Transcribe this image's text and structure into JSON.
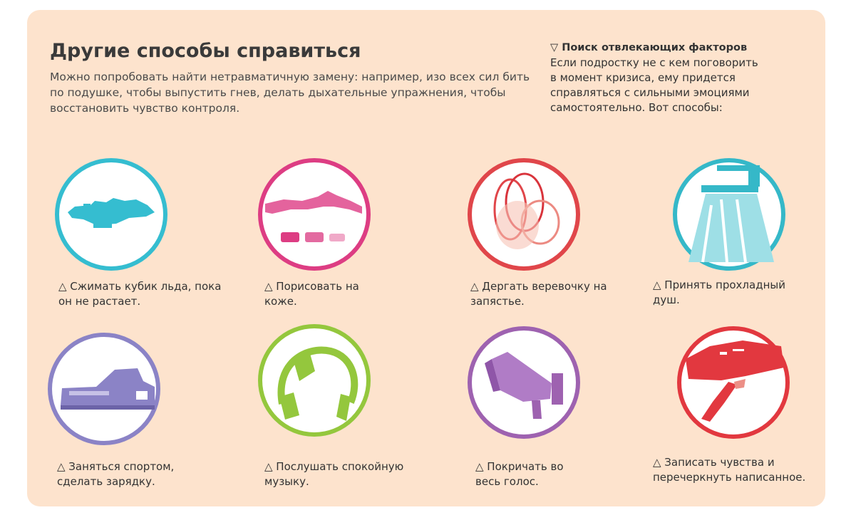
{
  "header": {
    "title": "Другие способы справиться",
    "intro": "Можно попробовать найти нетравматичную замену: например, изо всех сил бить по подушке, чтобы выпустить гнев, делать дыхательные упражнения, чтобы восстановить чувство контроля."
  },
  "sidebar": {
    "heading": "▽ Поиск отвлекающих факторов",
    "text": "Если подростку не с кем поговорить в момент кризиса, ему придется справляться с сильными эмоциями самостоятельно. Вот способы:"
  },
  "items": [
    {
      "caption": "△ Сжимать кубик льда, пока он не растает.",
      "icon": "ice-cube-icon",
      "color": "#35bdd0"
    },
    {
      "caption": "△ Порисовать на коже.",
      "icon": "drawing-on-skin-icon",
      "color": "#dd3d83"
    },
    {
      "caption": "△ Дергать веревочку на запястье.",
      "icon": "wrist-string-icon",
      "color": "#e0464a"
    },
    {
      "caption": "△ Принять прохладный душ.",
      "icon": "shower-icon",
      "color": "#35b8c8"
    },
    {
      "caption": "△ Заняться спортом, сделать зарядку.",
      "icon": "sneaker-icon",
      "color": "#8b83c6"
    },
    {
      "caption": "△ Послушать спокойную музыку.",
      "icon": "headphones-icon",
      "color": "#94c73d"
    },
    {
      "caption": "△ Покричать во весь голос.",
      "icon": "megaphone-icon",
      "color": "#9e62b0"
    },
    {
      "caption": "△ Записать чувства и перечеркнуть написанное.",
      "icon": "crossed-out-writing-icon",
      "color": "#e2383f"
    }
  ]
}
